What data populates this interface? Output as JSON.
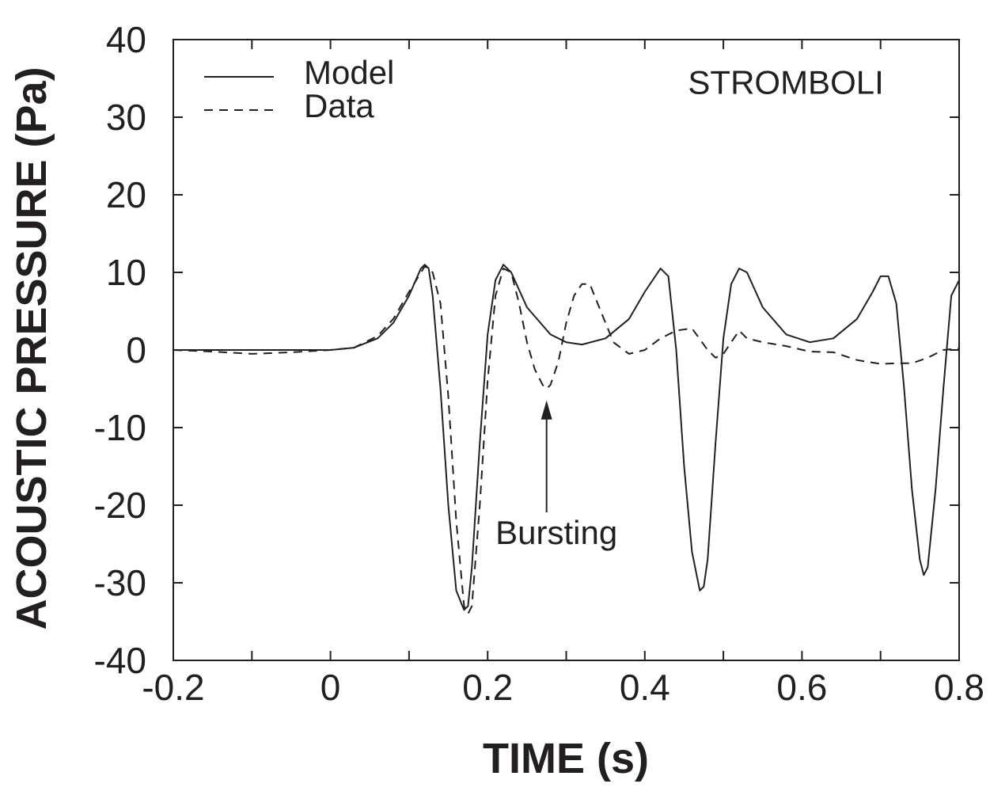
{
  "chart_data": {
    "type": "line",
    "title": "",
    "xlabel": "TIME (s)",
    "ylabel": "ACOUSTIC PRESSURE (Pa)",
    "xlim": [
      -0.2,
      0.8
    ],
    "ylim": [
      -40,
      40
    ],
    "xticks": [
      -0.2,
      0,
      0.2,
      0.4,
      0.6,
      0.8
    ],
    "xtick_labels": [
      "-0.2",
      "0",
      "0.2",
      "0.4",
      "0.6",
      "0.8"
    ],
    "yticks": [
      -40,
      -30,
      -20,
      -10,
      0,
      10,
      20,
      30,
      40
    ],
    "ytick_labels": [
      "-40",
      "-30",
      "-20",
      "-10",
      "0",
      "10",
      "20",
      "30",
      "40"
    ],
    "grid": false,
    "legend": "top-left",
    "annotations": [
      {
        "text": "STROMBOLI",
        "x": 0.455,
        "y": 33
      },
      {
        "text": "Bursting",
        "x": 0.21,
        "y": -25,
        "arrow_to": [
          0.275,
          -6.5
        ]
      }
    ],
    "series": [
      {
        "name": "Model",
        "style": "solid",
        "x": [
          -0.2,
          -0.1,
          0,
          0.03,
          0.06,
          0.08,
          0.1,
          0.115,
          0.12,
          0.125,
          0.13,
          0.14,
          0.15,
          0.16,
          0.17,
          0.175,
          0.18,
          0.19,
          0.2,
          0.21,
          0.22,
          0.23,
          0.25,
          0.28,
          0.3,
          0.32,
          0.35,
          0.38,
          0.4,
          0.42,
          0.43,
          0.44,
          0.45,
          0.46,
          0.47,
          0.475,
          0.48,
          0.49,
          0.5,
          0.51,
          0.52,
          0.53,
          0.55,
          0.58,
          0.61,
          0.64,
          0.67,
          0.69,
          0.7,
          0.71,
          0.72,
          0.73,
          0.74,
          0.75,
          0.755,
          0.76,
          0.77,
          0.78,
          0.79,
          0.8
        ],
        "y": [
          0,
          0,
          0,
          0.3,
          1.5,
          3.5,
          7,
          10.5,
          11,
          10.5,
          7,
          -5,
          -20,
          -31,
          -33.5,
          -33,
          -28,
          -12,
          2,
          9,
          11,
          10,
          5.5,
          2,
          1,
          0.7,
          1.5,
          4,
          7.5,
          10.5,
          9.5,
          0,
          -15,
          -26,
          -31,
          -30.5,
          -27,
          -12,
          1.5,
          8.5,
          10.5,
          10,
          5.5,
          2,
          1,
          1.5,
          4,
          7.5,
          9.5,
          9.5,
          6,
          -5,
          -18,
          -27,
          -29,
          -28,
          -18,
          -5,
          7,
          9
        ]
      },
      {
        "name": "Data",
        "style": "dashed",
        "x": [
          -0.2,
          -0.15,
          -0.1,
          -0.05,
          0,
          0.03,
          0.06,
          0.08,
          0.1,
          0.12,
          0.13,
          0.14,
          0.15,
          0.16,
          0.17,
          0.175,
          0.18,
          0.19,
          0.2,
          0.21,
          0.22,
          0.23,
          0.24,
          0.25,
          0.26,
          0.27,
          0.275,
          0.28,
          0.29,
          0.3,
          0.31,
          0.32,
          0.33,
          0.34,
          0.36,
          0.38,
          0.4,
          0.42,
          0.44,
          0.46,
          0.48,
          0.49,
          0.5,
          0.51,
          0.52,
          0.53,
          0.55,
          0.58,
          0.61,
          0.64,
          0.67,
          0.7,
          0.72,
          0.74,
          0.76,
          0.78,
          0.8
        ],
        "y": [
          0,
          -0.2,
          -0.5,
          -0.3,
          0,
          0.3,
          1.8,
          4,
          7.5,
          10.8,
          10,
          6,
          -6,
          -22,
          -33,
          -34,
          -33,
          -20,
          -4,
          7,
          10.5,
          10,
          6,
          1,
          -2.5,
          -4.5,
          -5,
          -4.5,
          -1.5,
          3.5,
          7,
          8.5,
          8.5,
          6,
          1,
          -0.5,
          0,
          1.5,
          2.5,
          2.8,
          0,
          -1,
          -0.5,
          1,
          2.5,
          1.5,
          1,
          0.5,
          -0.2,
          -0.3,
          -1.3,
          -1.8,
          -1.7,
          -1.7,
          -1,
          0,
          0.2
        ]
      }
    ]
  }
}
